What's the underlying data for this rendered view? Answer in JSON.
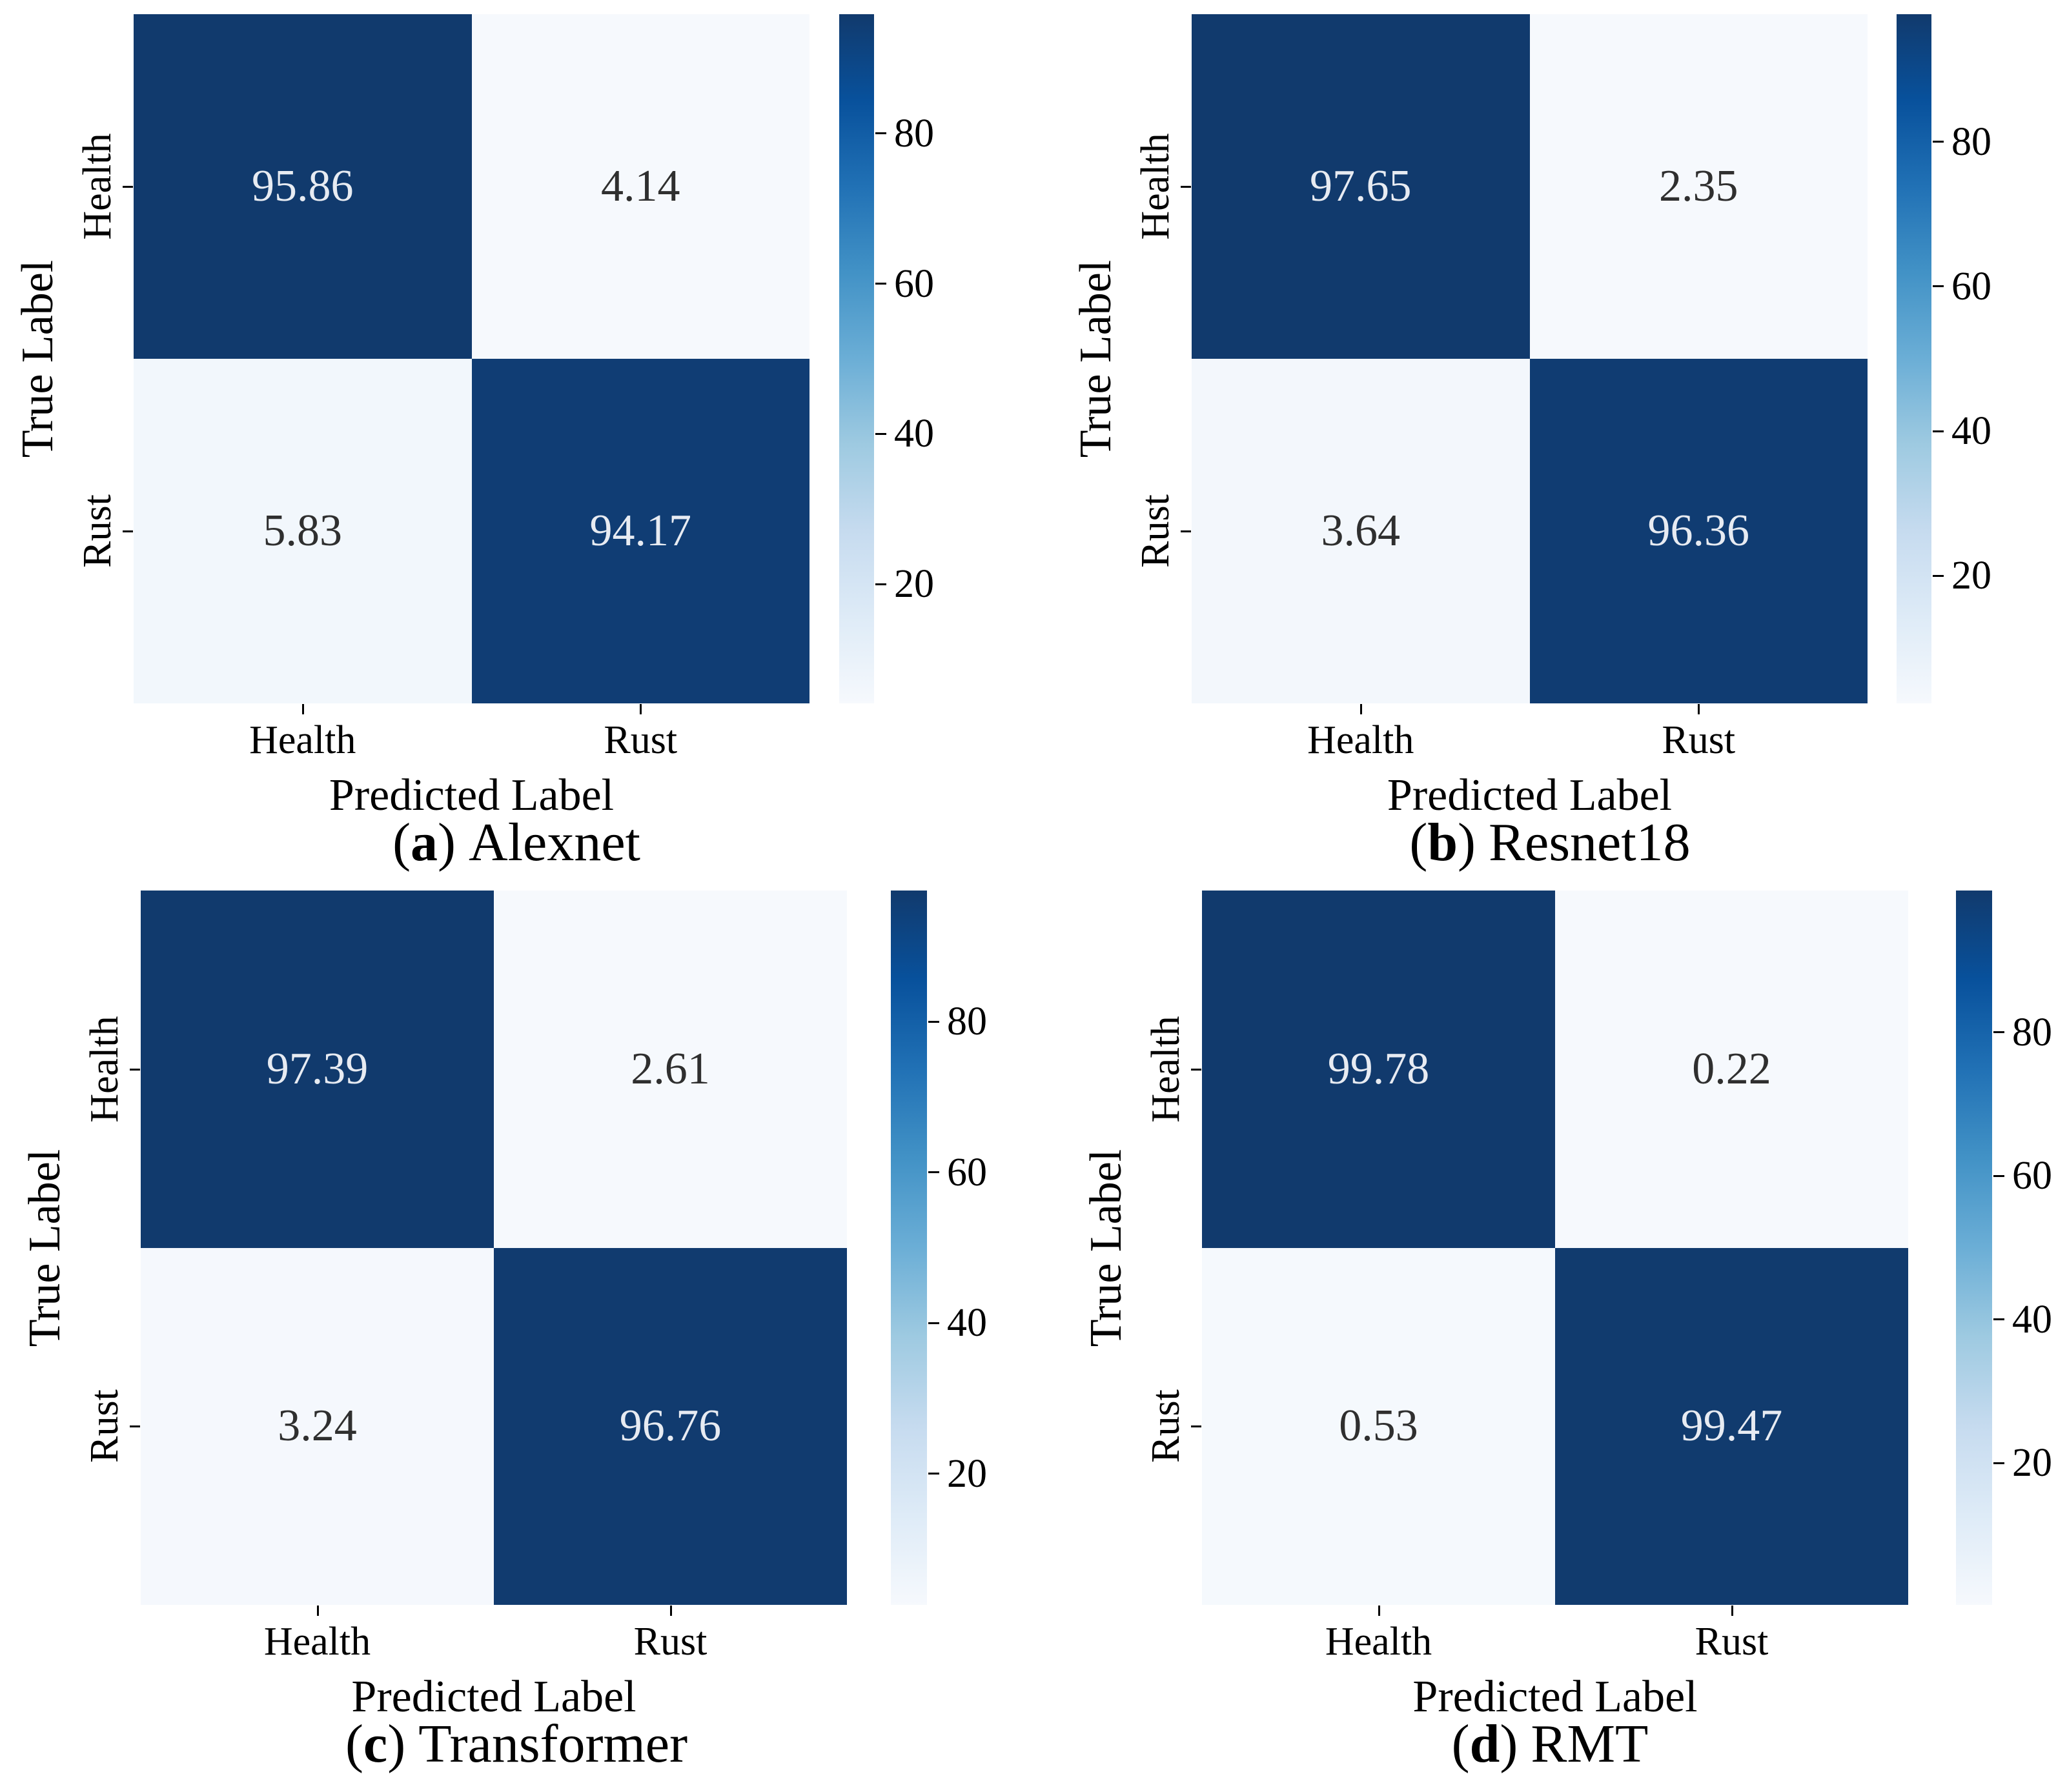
{
  "figure": {
    "background": "#ffffff",
    "text_color": "#000000",
    "colormap_stops": [
      "#f6f9fd",
      "#deebf7",
      "#c6dbef",
      "#9ecae1",
      "#6baed6",
      "#4292c6",
      "#2171b5",
      "#08519c",
      "#113a6d"
    ],
    "value_text_on_dark": "#e7ebf2",
    "value_text_on_light": "#2f2f2f"
  },
  "chart_data": [
    {
      "type": "heatmap",
      "panel": "a",
      "caption": {
        "open": "(",
        "letter": "a",
        "close": ")",
        "name": "Alexnet"
      },
      "xlabel": "Predicted Label",
      "ylabel": "True Label",
      "x_categories": [
        "Health",
        "Rust"
      ],
      "y_categories": [
        "Health",
        "Rust"
      ],
      "matrix": [
        [
          95.86,
          4.14
        ],
        [
          5.83,
          94.17
        ]
      ],
      "colorbar": {
        "ticks": [
          80,
          60,
          40,
          20
        ]
      }
    },
    {
      "type": "heatmap",
      "panel": "b",
      "caption": {
        "open": "(",
        "letter": "b",
        "close": ")",
        "name": "Resnet18"
      },
      "xlabel": "Predicted Label",
      "ylabel": "True Label",
      "x_categories": [
        "Health",
        "Rust"
      ],
      "y_categories": [
        "Health",
        "Rust"
      ],
      "matrix": [
        [
          97.65,
          2.35
        ],
        [
          3.64,
          96.36
        ]
      ],
      "colorbar": {
        "ticks": [
          80,
          60,
          40,
          20
        ]
      }
    },
    {
      "type": "heatmap",
      "panel": "c",
      "caption": {
        "open": "(",
        "letter": "c",
        "close": ")",
        "name": "Transformer"
      },
      "xlabel": "Predicted Label",
      "ylabel": "True Label",
      "x_categories": [
        "Health",
        "Rust"
      ],
      "y_categories": [
        "Health",
        "Rust"
      ],
      "matrix": [
        [
          97.39,
          2.61
        ],
        [
          3.24,
          96.76
        ]
      ],
      "colorbar": {
        "ticks": [
          80,
          60,
          40,
          20
        ]
      }
    },
    {
      "type": "heatmap",
      "panel": "d",
      "caption": {
        "open": "(",
        "letter": "d",
        "close": ")",
        "name": "RMT"
      },
      "xlabel": "Predicted Label",
      "ylabel": "True Label",
      "x_categories": [
        "Health",
        "Rust"
      ],
      "y_categories": [
        "Health",
        "Rust"
      ],
      "matrix": [
        [
          99.78,
          0.22
        ],
        [
          0.53,
          99.47
        ]
      ],
      "colorbar": {
        "ticks": [
          80,
          60,
          40,
          20
        ]
      }
    }
  ]
}
